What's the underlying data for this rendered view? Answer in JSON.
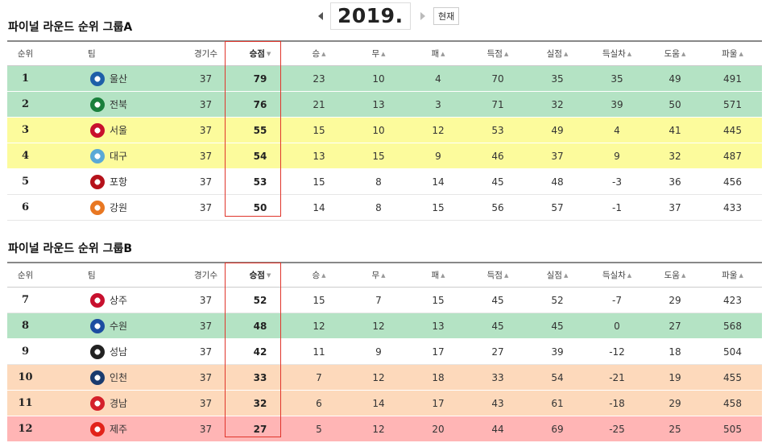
{
  "season": {
    "year": "2019.",
    "current_label": "현재"
  },
  "columns": {
    "rank": "순위",
    "team": "팀",
    "played": "경기수",
    "points": "승점",
    "wins": "승",
    "draws": "무",
    "losses": "패",
    "goals_for": "득점",
    "goals_against": "실점",
    "goal_diff": "득실차",
    "assists": "도움",
    "fouls": "파울"
  },
  "groups": [
    {
      "title": "파이널 라운드 순위 그룹A",
      "rows": [
        {
          "rank": "1",
          "team": "울산",
          "played": "37",
          "points": "79",
          "wins": "23",
          "draws": "10",
          "losses": "4",
          "gf": "70",
          "ga": "35",
          "gd": "35",
          "assists": "49",
          "fouls": "491",
          "zone": "green",
          "emblem_color": "#1e5fa8"
        },
        {
          "rank": "2",
          "team": "전북",
          "played": "37",
          "points": "76",
          "wins": "21",
          "draws": "13",
          "losses": "3",
          "gf": "71",
          "ga": "32",
          "gd": "39",
          "assists": "50",
          "fouls": "571",
          "zone": "green",
          "emblem_color": "#1a7f3c"
        },
        {
          "rank": "3",
          "team": "서울",
          "played": "37",
          "points": "55",
          "wins": "15",
          "draws": "10",
          "losses": "12",
          "gf": "53",
          "ga": "49",
          "gd": "4",
          "assists": "41",
          "fouls": "445",
          "zone": "yellow",
          "emblem_color": "#c8102e"
        },
        {
          "rank": "4",
          "team": "대구",
          "played": "37",
          "points": "54",
          "wins": "13",
          "draws": "15",
          "losses": "9",
          "gf": "46",
          "ga": "37",
          "gd": "9",
          "assists": "32",
          "fouls": "487",
          "zone": "yellow",
          "emblem_color": "#5aa9d6"
        },
        {
          "rank": "5",
          "team": "포항",
          "played": "37",
          "points": "53",
          "wins": "15",
          "draws": "8",
          "losses": "14",
          "gf": "45",
          "ga": "48",
          "gd": "-3",
          "assists": "36",
          "fouls": "456",
          "zone": "white",
          "emblem_color": "#b5121b"
        },
        {
          "rank": "6",
          "team": "강원",
          "played": "37",
          "points": "50",
          "wins": "14",
          "draws": "8",
          "losses": "15",
          "gf": "56",
          "ga": "57",
          "gd": "-1",
          "assists": "37",
          "fouls": "433",
          "zone": "white",
          "emblem_color": "#e87722"
        }
      ]
    },
    {
      "title": "파이널 라운드 순위 그룹B",
      "rows": [
        {
          "rank": "7",
          "team": "상주",
          "played": "37",
          "points": "52",
          "wins": "15",
          "draws": "7",
          "losses": "15",
          "gf": "45",
          "ga": "52",
          "gd": "-7",
          "assists": "29",
          "fouls": "423",
          "zone": "white",
          "emblem_color": "#c8102e"
        },
        {
          "rank": "8",
          "team": "수원",
          "played": "37",
          "points": "48",
          "wins": "12",
          "draws": "12",
          "losses": "13",
          "gf": "45",
          "ga": "45",
          "gd": "0",
          "assists": "27",
          "fouls": "568",
          "zone": "green",
          "emblem_color": "#1c4da1"
        },
        {
          "rank": "9",
          "team": "성남",
          "played": "37",
          "points": "42",
          "wins": "11",
          "draws": "9",
          "losses": "17",
          "gf": "27",
          "ga": "39",
          "gd": "-12",
          "assists": "18",
          "fouls": "504",
          "zone": "white",
          "emblem_color": "#222222"
        },
        {
          "rank": "10",
          "team": "인천",
          "played": "37",
          "points": "33",
          "wins": "7",
          "draws": "12",
          "losses": "18",
          "gf": "33",
          "ga": "54",
          "gd": "-21",
          "assists": "19",
          "fouls": "455",
          "zone": "peach",
          "emblem_color": "#1a3b6e"
        },
        {
          "rank": "11",
          "team": "경남",
          "played": "37",
          "points": "32",
          "wins": "6",
          "draws": "14",
          "losses": "17",
          "gf": "43",
          "ga": "61",
          "gd": "-18",
          "assists": "29",
          "fouls": "458",
          "zone": "peach",
          "emblem_color": "#d4202a"
        },
        {
          "rank": "12",
          "team": "제주",
          "played": "37",
          "points": "27",
          "wins": "5",
          "draws": "12",
          "losses": "20",
          "gf": "44",
          "ga": "69",
          "gd": "-25",
          "assists": "25",
          "fouls": "505",
          "zone": "red",
          "emblem_color": "#e2231a"
        }
      ]
    }
  ]
}
